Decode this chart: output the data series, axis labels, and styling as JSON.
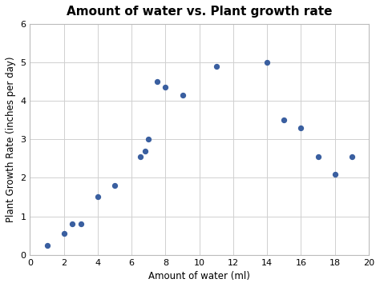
{
  "title": "Amount of water vs. Plant growth rate",
  "xlabel": "Amount of water (ml)",
  "ylabel": "Plant Growth Rate (inches per day)",
  "x": [
    1,
    2,
    2.5,
    3,
    4,
    5,
    6.5,
    6.8,
    7,
    7.5,
    8,
    9,
    11,
    14,
    15,
    16,
    17,
    18,
    19
  ],
  "y": [
    0.25,
    0.55,
    0.8,
    0.8,
    1.5,
    1.8,
    2.55,
    2.7,
    3.0,
    4.5,
    4.35,
    4.15,
    4.9,
    5.0,
    3.5,
    3.3,
    2.55,
    2.1,
    2.55
  ],
  "xlim": [
    0,
    20
  ],
  "ylim": [
    0,
    6
  ],
  "xticks": [
    0,
    2,
    4,
    6,
    8,
    10,
    12,
    14,
    16,
    18,
    20
  ],
  "yticks": [
    0,
    1,
    2,
    3,
    4,
    5,
    6
  ],
  "dot_color": "#3A5FA0",
  "dot_size": 18,
  "background_color": "#ffffff",
  "grid_color": "#d0d0d0",
  "title_fontsize": 11,
  "label_fontsize": 8.5,
  "tick_fontsize": 8
}
